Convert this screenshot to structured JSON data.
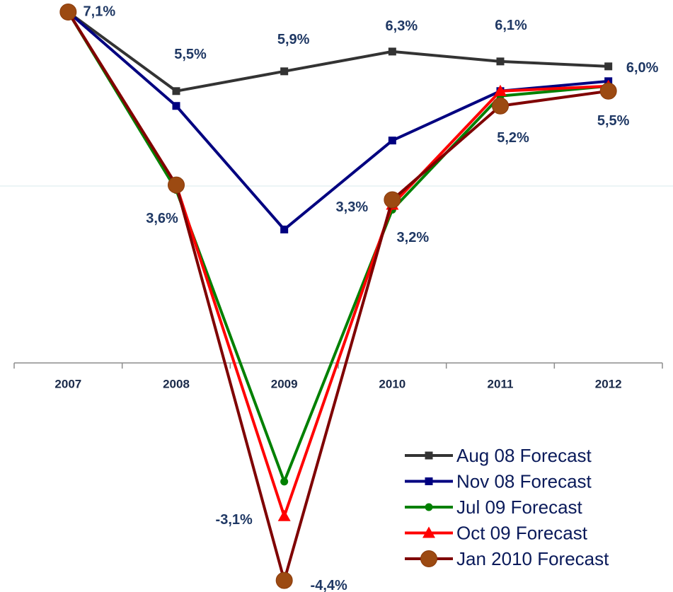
{
  "chart_data": {
    "type": "line",
    "categories": [
      "2007",
      "2008",
      "2009",
      "2010",
      "2011",
      "2012"
    ],
    "ylim": [
      -4.6,
      7.3
    ],
    "legend": "bottom-right",
    "series": [
      {
        "name": "Aug 08 Forecast",
        "color": "#333333",
        "marker": "square",
        "values": [
          7.1,
          5.5,
          5.9,
          6.3,
          6.1,
          6.0
        ],
        "value_labels": [
          "7,1%",
          "5,5%",
          "5,9%",
          "6,3%",
          "6,1%",
          "6,0%"
        ]
      },
      {
        "name": "Nov 08 Forecast",
        "color": "#000080",
        "marker": "square",
        "values": [
          7.1,
          5.2,
          2.7,
          4.5,
          5.5,
          5.7
        ]
      },
      {
        "name": "Jul 09 Forecast",
        "color": "#008000",
        "marker": "circle",
        "values": [
          7.1,
          3.5,
          -2.4,
          3.1,
          5.4,
          5.6
        ]
      },
      {
        "name": "Oct 09 Forecast",
        "color": "#ff0000",
        "marker": "triangle",
        "values": [
          7.1,
          3.6,
          -3.1,
          3.2,
          5.5,
          5.6
        ],
        "value_labels": [
          null,
          null,
          "-3,1%",
          "3,2%",
          null,
          null
        ]
      },
      {
        "name": "Jan 2010 Forecast",
        "color": "#7f0000",
        "marker": "bigcircle",
        "values": [
          7.1,
          3.6,
          -4.4,
          3.3,
          5.2,
          5.5
        ],
        "value_labels": [
          null,
          "3,6%",
          "-4,4%",
          "3,3%",
          "5,2%",
          "5,5%"
        ]
      }
    ]
  }
}
